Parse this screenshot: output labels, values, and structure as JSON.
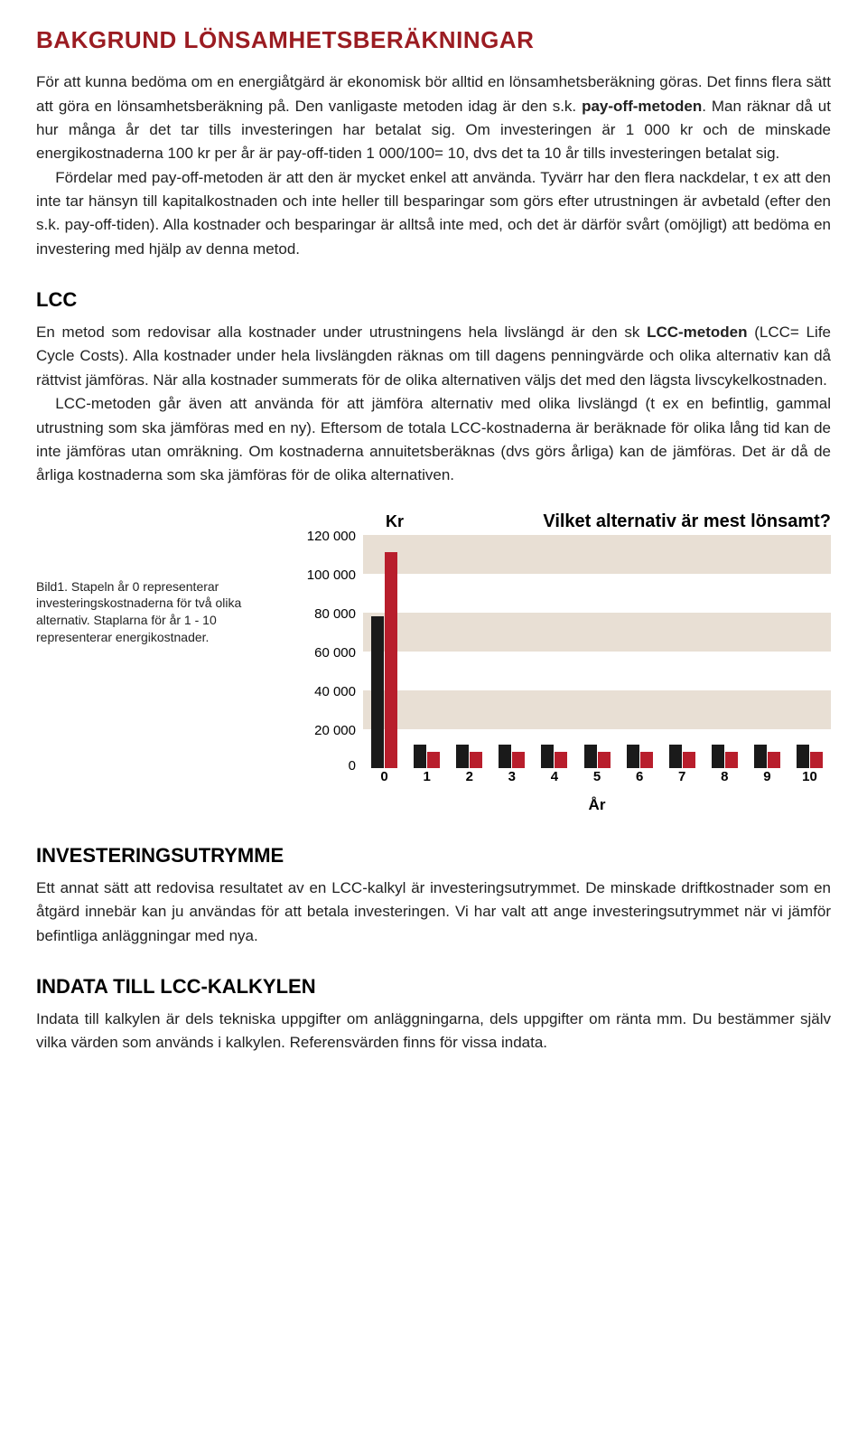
{
  "title_color": "#9b1c22",
  "main_title": "BAKGRUND LÖNSAMHETSBERÄKNINGAR",
  "intro": {
    "p1_a": "För att kunna bedöma om en energiåtgärd är ekonomisk bör alltid en lönsamhetsberäkning göras. Det finns flera sätt att göra en lönsamhetsberäkning på. Den vanligaste metoden idag är den s.k. ",
    "p1_bold": "pay-off-metoden",
    "p1_b": ". Man räknar då ut hur många år det tar tills investeringen har betalat sig. Om investeringen är 1 000 kr och de minskade energikostnaderna 100 kr per år är pay-off-tiden 1 000/100= 10, dvs det ta 10 år tills investeringen betalat sig.",
    "p2": "Fördelar med pay-off-metoden är att den är mycket enkel att använda. Tyvärr har den flera nackdelar, t ex att den inte tar hänsyn till kapitalkostnaden och inte heller till besparingar som görs efter utrustningen är avbetald (efter den s.k. pay-off-tiden). Alla kostnader och besparingar är alltså inte med, och det är därför svårt (omöjligt) att bedöma en investering med hjälp av denna metod."
  },
  "lcc": {
    "heading": "LCC",
    "p1_a": "En metod som redovisar alla kostnader under utrustningens hela livslängd är den sk ",
    "p1_bold": "LCC-metoden",
    "p1_b": " (LCC= Life Cycle Costs). Alla kostnader under hela livslängden räknas om till dagens penningvärde och olika alternativ kan då rättvist jämföras. När alla kostnader summerats för de olika alternativen väljs det med den lägsta livscykelkostnaden.",
    "p2": "LCC-metoden går även att använda för att jämföra alternativ med olika livslängd (t ex en befintlig, gammal utrustning som ska jämföras med en ny). Eftersom de totala LCC-kostnaderna är beräknade för olika lång tid kan de inte jämföras utan omräkning. Om kostnaderna annuitetsberäknas (dvs görs årliga) kan de jämföras. Det är då de årliga kostnaderna som ska jämföras för de olika alternativen."
  },
  "figure": {
    "caption": "Bild1. Stapeln år 0 representerar investeringskostnaderna för två olika alternativ. Staplarna för år 1 - 10 representerar energikostnader.",
    "y_unit": "Kr",
    "question": "Vilket alternativ är mest lönsamt?",
    "x_axis_title": "År",
    "chart": {
      "type": "bar",
      "ylim_max": 120000,
      "ytick_step": 20000,
      "y_ticks": [
        "0",
        "20 000",
        "40 000",
        "60 000",
        "80 000",
        "100 000",
        "120 000"
      ],
      "band_colors": [
        "#ffffff",
        "#e8dfd4"
      ],
      "series_colors": {
        "a": "#1a1a1a",
        "b": "#b81e2c"
      },
      "categories": [
        "0",
        "1",
        "2",
        "3",
        "4",
        "5",
        "6",
        "7",
        "8",
        "9",
        "10"
      ],
      "series_a": [
        78000,
        12000,
        12000,
        12000,
        12000,
        12000,
        12000,
        12000,
        12000,
        12000,
        12000
      ],
      "series_b": [
        111000,
        8000,
        8000,
        8000,
        8000,
        8000,
        8000,
        8000,
        8000,
        8000,
        8000
      ]
    }
  },
  "investering": {
    "heading": "INVESTERINGSUTRYMME",
    "p1": "Ett annat sätt att redovisa resultatet av en LCC-kalkyl är investeringsutrymmet. De minskade driftkostnader som en åtgärd innebär kan ju användas för att betala investeringen. Vi har valt att ange investeringsutrymmet när vi jämför befintliga anläggningar med nya."
  },
  "indata": {
    "heading": "INDATA TILL LCC-KALKYLEN",
    "p1": "Indata till kalkylen är dels tekniska uppgifter om anläggningarna, dels uppgifter om ränta mm. Du bestämmer själv vilka värden som används i kalkylen. Referensvärden finns för vissa indata."
  }
}
